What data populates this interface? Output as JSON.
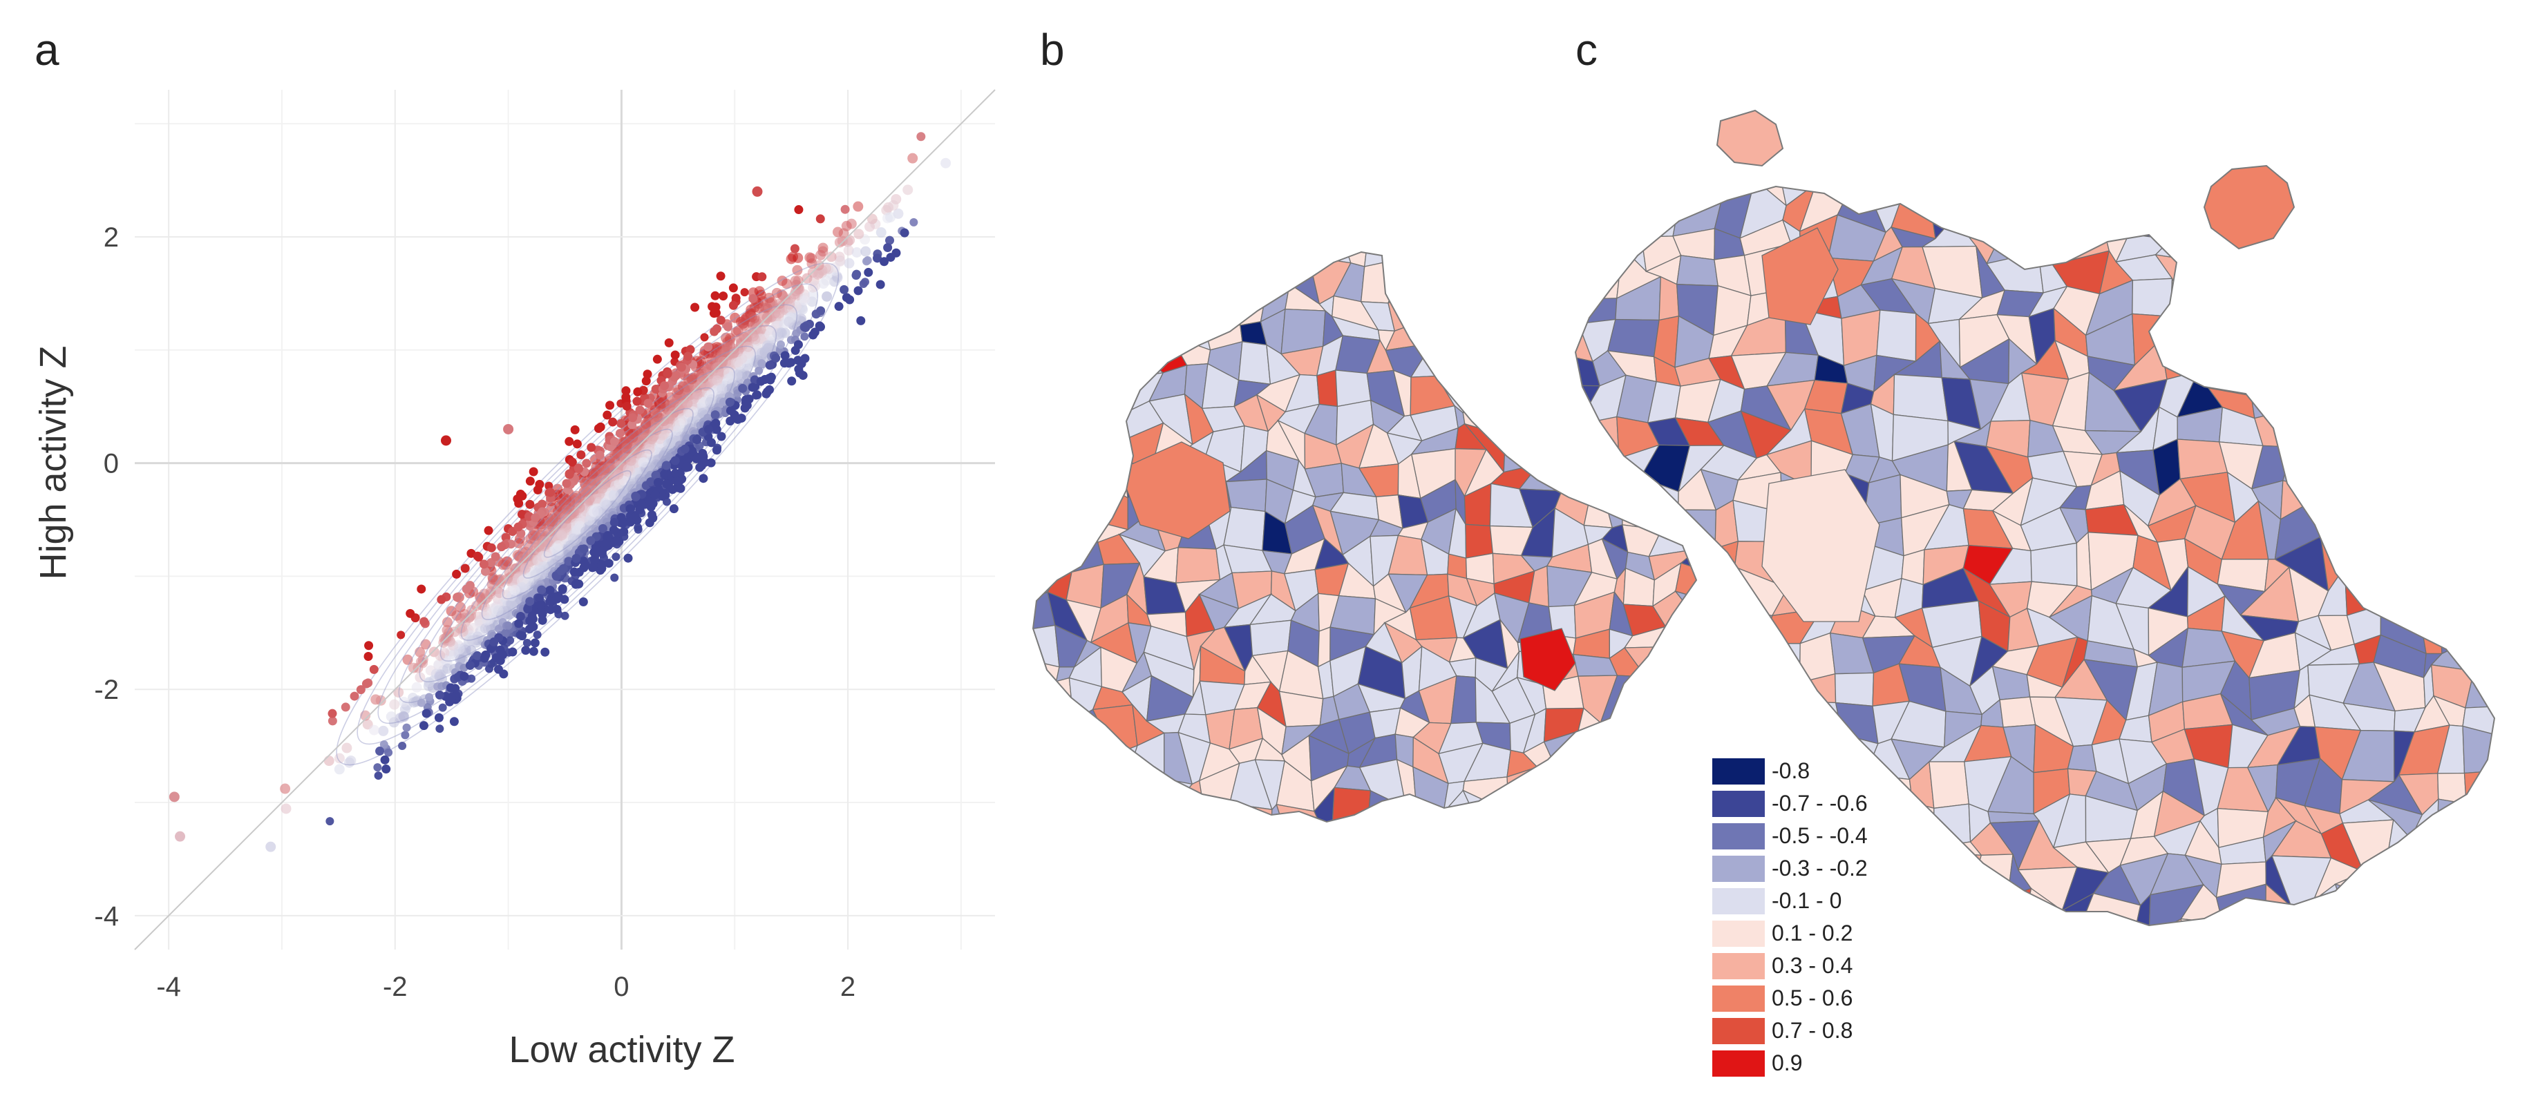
{
  "panels": {
    "a": "a",
    "b": "b",
    "c": "c"
  },
  "chart_data": [
    {
      "type": "scatter",
      "panel": "a",
      "title": "",
      "xlabel": "Low activity Z",
      "ylabel": "High activity Z",
      "xlim": [
        -4.3,
        3.3
      ],
      "ylim": [
        -4.3,
        3.3
      ],
      "xticks": [
        -4,
        -2,
        0,
        2
      ],
      "yticks": [
        -4,
        -2,
        0,
        2
      ],
      "tick_labels_x": [
        "-4",
        "-2",
        "0",
        "2"
      ],
      "tick_labels_y": [
        "-4",
        "-2",
        "0",
        "2"
      ],
      "grid": true,
      "reference_line": "y = x",
      "density_contours": true,
      "color_scale": {
        "low": "#3e4496",
        "mid": "#e9e9f3",
        "high": "#c81e1e"
      },
      "highlighted_points": [
        {
          "x": -1.55,
          "y": 0.2,
          "z": 0.9
        },
        {
          "x": 1.2,
          "y": 2.4,
          "z": 0.7
        },
        {
          "x": -3.95,
          "y": -2.95,
          "z": 0.4
        },
        {
          "x": -3.9,
          "y": -3.3,
          "z": 0.2
        },
        {
          "x": -1.0,
          "y": 0.3,
          "z": 0.5
        }
      ]
    },
    {
      "type": "choropleth",
      "panel": "b",
      "title": "",
      "legend_ref": "shared"
    },
    {
      "type": "choropleth",
      "panel": "c",
      "title": "",
      "legend_ref": "shared"
    }
  ],
  "legend": {
    "items": [
      {
        "label": "-0.8",
        "color": "#0a1f6e"
      },
      {
        "label": "-0.7 - -0.6",
        "color": "#3c4596"
      },
      {
        "label": "-0.5 - -0.4",
        "color": "#6f76b4"
      },
      {
        "label": "-0.3 - -0.2",
        "color": "#a6abd1"
      },
      {
        "label": "-0.1 - 0",
        "color": "#dcdeee"
      },
      {
        "label": "0.1 - 0.2",
        "color": "#fbe3dc"
      },
      {
        "label": "0.3 - 0.4",
        "color": "#f6b1a0"
      },
      {
        "label": "0.5 - 0.6",
        "color": "#ef8267"
      },
      {
        "label": "0.7 - 0.8",
        "color": "#e0503c"
      },
      {
        "label": "0.9",
        "color": "#e01515"
      }
    ]
  }
}
